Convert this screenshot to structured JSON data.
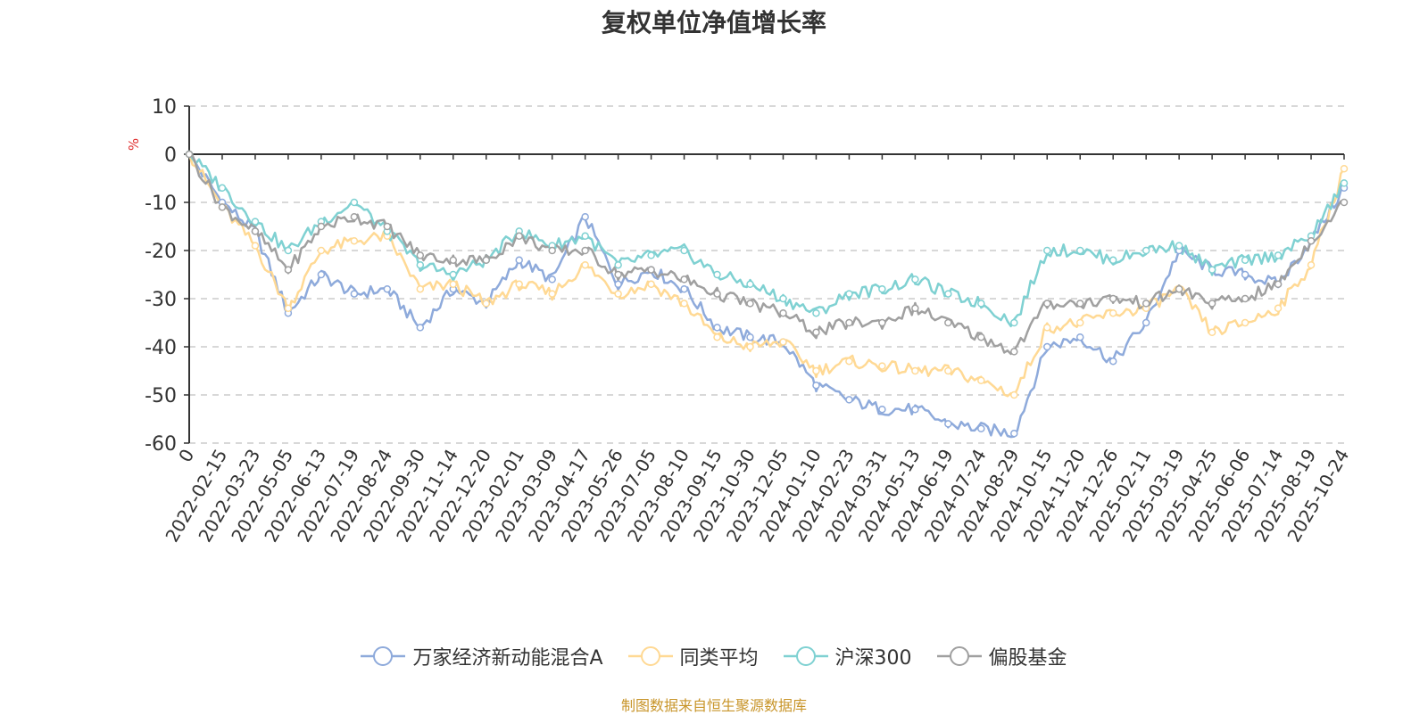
{
  "chart_data": {
    "type": "line",
    "title": "复权单位净值增长率",
    "ylabel": "%",
    "ylim": [
      -60,
      10
    ],
    "yticks": [
      10,
      0,
      -10,
      -20,
      -30,
      -40,
      -50,
      -60
    ],
    "grid": true,
    "legend_position": "bottom-center",
    "x_tick_labels": [
      "0",
      "2022-02-15",
      "2022-03-23",
      "2022-05-05",
      "2022-06-13",
      "2022-07-19",
      "2022-08-24",
      "2022-09-30",
      "2022-11-14",
      "2022-12-20",
      "2023-02-01",
      "2023-03-09",
      "2023-04-17",
      "2023-05-26",
      "2023-07-05",
      "2023-08-10",
      "2023-09-15",
      "2023-10-30",
      "2023-12-05",
      "2024-01-10",
      "2024-02-23",
      "2024-03-31",
      "2024-05-13",
      "2024-06-19",
      "2024-07-24",
      "2024-08-29",
      "2024-10-15",
      "2024-11-20",
      "2024-12-26",
      "2025-02-11",
      "2025-03-19",
      "2025-04-25",
      "2025-06-06",
      "2025-07-14",
      "2025-08-19",
      "2025-10-24"
    ],
    "x": [
      "0",
      "2022-02-15",
      "2022-03-23",
      "2022-05-05",
      "2022-06-13",
      "2022-07-19",
      "2022-08-24",
      "2022-09-30",
      "2022-11-14",
      "2022-12-20",
      "2023-02-01",
      "2023-03-09",
      "2023-04-17",
      "2023-05-26",
      "2023-07-05",
      "2023-08-10",
      "2023-09-15",
      "2023-10-30",
      "2023-12-05",
      "2024-01-10",
      "2024-02-23",
      "2024-03-31",
      "2024-05-13",
      "2024-06-19",
      "2024-07-24",
      "2024-08-29",
      "2024-10-15",
      "2024-11-20",
      "2024-12-26",
      "2025-02-11",
      "2025-03-19",
      "2025-04-25",
      "2025-06-06",
      "2025-07-14",
      "2025-08-19",
      "2025-10-24"
    ],
    "series": [
      {
        "name": "万家经济新动能混合A",
        "color": "#8eaadb",
        "values": [
          0,
          -10,
          -16,
          -33,
          -25,
          -29,
          -28,
          -36,
          -28,
          -31,
          -22,
          -26,
          -13,
          -27,
          -24,
          -28,
          -36,
          -38,
          -39,
          -48,
          -51,
          -53,
          -53,
          -56,
          -57,
          -58,
          -40,
          -38,
          -43,
          -35,
          -20,
          -24,
          -25,
          -27,
          -18,
          -7
        ]
      },
      {
        "name": "同类平均",
        "color": "#ffd994",
        "values": [
          0,
          -11,
          -19,
          -32,
          -20,
          -18,
          -17,
          -28,
          -27,
          -31,
          -27,
          -29,
          -23,
          -29,
          -27,
          -31,
          -38,
          -40,
          -39,
          -45,
          -43,
          -44,
          -45,
          -45,
          -47,
          -50,
          -36,
          -35,
          -33,
          -32,
          -28,
          -37,
          -35,
          -32,
          -23,
          -3
        ]
      },
      {
        "name": "沪深300",
        "color": "#7fd1d2",
        "values": [
          0,
          -7,
          -14,
          -20,
          -14,
          -10,
          -16,
          -23,
          -25,
          -22,
          -16,
          -19,
          -17,
          -23,
          -21,
          -20,
          -25,
          -27,
          -30,
          -33,
          -29,
          -28,
          -26,
          -29,
          -31,
          -35,
          -20,
          -20,
          -22,
          -20,
          -19,
          -24,
          -22,
          -21,
          -17,
          -6
        ]
      },
      {
        "name": "偏股基金",
        "color": "#a0a0a0",
        "values": [
          0,
          -11,
          -16,
          -24,
          -15,
          -13,
          -15,
          -21,
          -22,
          -22,
          -17,
          -20,
          -20,
          -25,
          -24,
          -26,
          -29,
          -31,
          -33,
          -37,
          -35,
          -35,
          -32,
          -35,
          -38,
          -41,
          -31,
          -31,
          -30,
          -31,
          -28,
          -31,
          -30,
          -27,
          -18,
          -10
        ]
      }
    ]
  },
  "source_note": "制图数据来自恒生聚源数据库"
}
